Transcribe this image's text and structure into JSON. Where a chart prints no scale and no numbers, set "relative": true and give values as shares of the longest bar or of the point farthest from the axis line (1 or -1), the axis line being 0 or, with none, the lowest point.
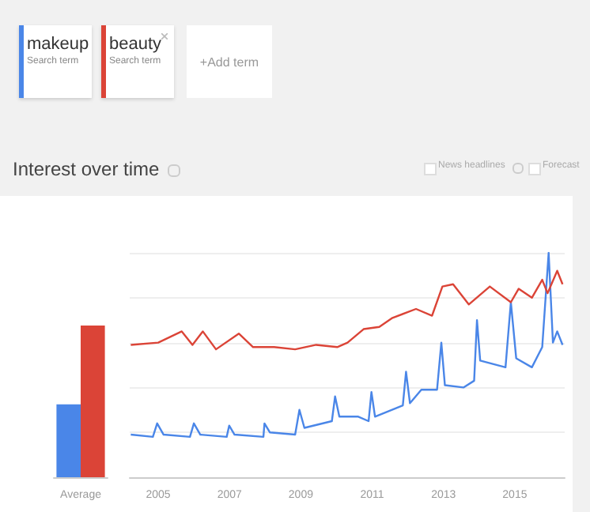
{
  "chart_data": [
    {
      "type": "bar",
      "title": "Interest over time",
      "categories": [
        "Average"
      ],
      "relative": true,
      "legend": "top",
      "annotations": [
        "Search term",
        "Search term",
        "+Add term",
        "News headlines",
        "Forecast"
      ],
      "series": [
        {
          "name": "makeup",
          "color": "#4a86e8",
          "values": [
            0.48
          ]
        },
        {
          "name": "beauty",
          "color": "#db4437",
          "values": [
            1
          ]
        }
      ]
    },
    {
      "type": "line",
      "relative": true,
      "grid": "y",
      "xlim": [
        2004.2,
        2016.4
      ],
      "xticks": [
        2005,
        2007,
        2009,
        2011,
        2013,
        2015
      ],
      "series": [
        {
          "color": "#4a86e8",
          "x": [
            2004.23,
            2004.85,
            2004.97,
            2005.15,
            2005.89,
            2006.0,
            2006.18,
            2006.92,
            2006.99,
            2007.14,
            2007.95,
            2007.98,
            2008.13,
            2008.84,
            2008.96,
            2009.1,
            2009.87,
            2009.96,
            2010.08,
            2010.61,
            2010.9,
            2010.98,
            2011.08,
            2011.86,
            2011.95,
            2012.06,
            2012.38,
            2012.82,
            2012.94,
            2013.04,
            2013.56,
            2013.86,
            2013.94,
            2014.03,
            2014.74,
            2014.89,
            2015.04,
            2015.48,
            2015.77,
            2015.95,
            2016.07,
            2016.19,
            2016.34
          ],
          "values": [
            0.19,
            0.18,
            0.24,
            0.19,
            0.18,
            0.24,
            0.19,
            0.18,
            0.23,
            0.19,
            0.18,
            0.24,
            0.2,
            0.19,
            0.3,
            0.22,
            0.25,
            0.36,
            0.27,
            0.27,
            0.25,
            0.38,
            0.27,
            0.32,
            0.47,
            0.33,
            0.39,
            0.39,
            0.6,
            0.41,
            0.4,
            0.43,
            0.7,
            0.52,
            0.49,
            0.78,
            0.53,
            0.49,
            0.58,
            1,
            0.6,
            0.65,
            0.59
          ]
        },
        {
          "color": "#db4437",
          "x": [
            2004.23,
            2005.0,
            2005.66,
            2005.96,
            2006.25,
            2006.62,
            2007.26,
            2007.66,
            2008.25,
            2008.84,
            2009.43,
            2010.02,
            2010.31,
            2010.76,
            2011.2,
            2011.57,
            2012.23,
            2012.68,
            2012.97,
            2013.27,
            2013.71,
            2014.3,
            2014.89,
            2015.11,
            2015.48,
            2015.77,
            2015.92,
            2016.19,
            2016.34
          ],
          "values": [
            0.59,
            0.6,
            0.65,
            0.59,
            0.65,
            0.57,
            0.64,
            0.58,
            0.58,
            0.57,
            0.59,
            0.58,
            0.6,
            0.66,
            0.67,
            0.71,
            0.75,
            0.72,
            0.85,
            0.86,
            0.77,
            0.85,
            0.78,
            0.84,
            0.8,
            0.88,
            0.82,
            0.92,
            0.86
          ]
        }
      ]
    }
  ]
}
